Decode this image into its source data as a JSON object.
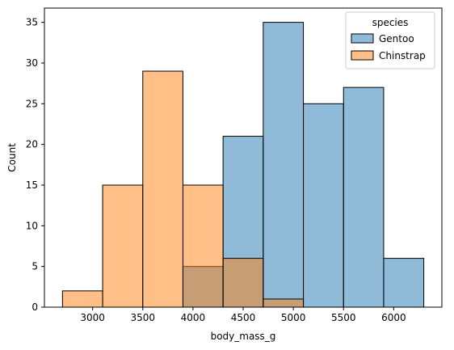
{
  "chart_data": {
    "type": "bar",
    "subtype": "histogram",
    "xlabel": "body_mass_g",
    "ylabel": "Count",
    "xlim": [
      2520,
      6480
    ],
    "ylim": [
      0,
      36.75
    ],
    "xticks": [
      3000,
      3500,
      4000,
      4500,
      5000,
      5500,
      6000
    ],
    "yticks": [
      0,
      5,
      10,
      15,
      20,
      25,
      30,
      35
    ],
    "grid": false,
    "legend": {
      "title": "species",
      "position": "top-right"
    },
    "series": [
      {
        "name": "Gentoo",
        "color": "#1f77b4",
        "fill_opacity": 0.5,
        "bins": [
          {
            "start": 3900,
            "end": 4300,
            "count": 5
          },
          {
            "start": 4300,
            "end": 4700,
            "count": 21
          },
          {
            "start": 4700,
            "end": 5100,
            "count": 35
          },
          {
            "start": 5100,
            "end": 5500,
            "count": 25
          },
          {
            "start": 5500,
            "end": 5900,
            "count": 27
          },
          {
            "start": 5900,
            "end": 6300,
            "count": 6
          }
        ]
      },
      {
        "name": "Chinstrap",
        "color": "#ff7f0e",
        "fill_opacity": 0.5,
        "bins": [
          {
            "start": 2700,
            "end": 3100,
            "count": 2
          },
          {
            "start": 3100,
            "end": 3500,
            "count": 15
          },
          {
            "start": 3500,
            "end": 3900,
            "count": 29
          },
          {
            "start": 3900,
            "end": 4300,
            "count": 15
          },
          {
            "start": 4300,
            "end": 4700,
            "count": 6
          },
          {
            "start": 4700,
            "end": 5100,
            "count": 1
          }
        ]
      }
    ]
  }
}
